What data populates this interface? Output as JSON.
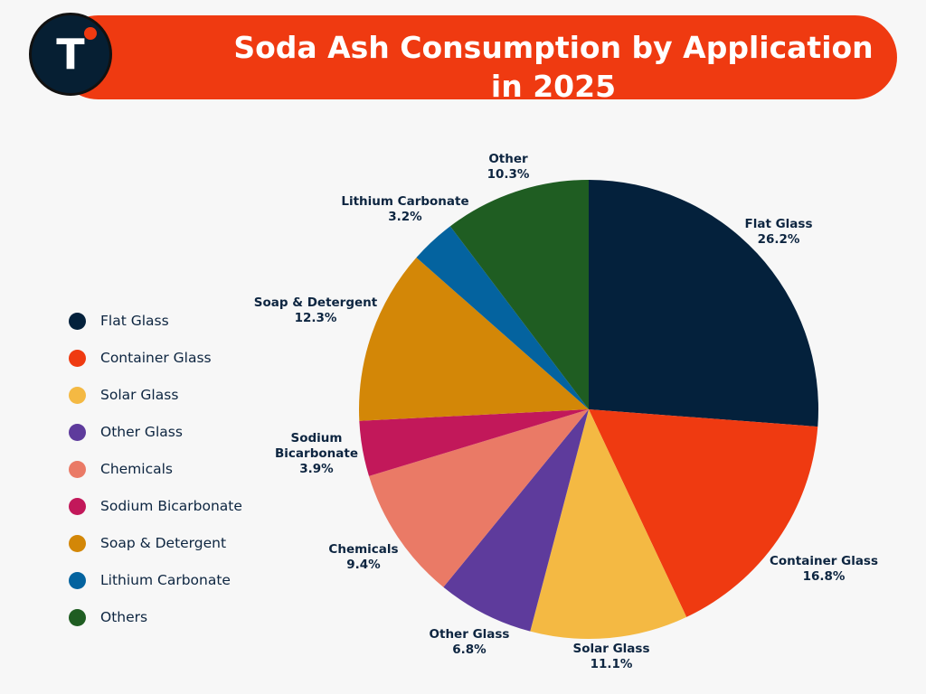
{
  "header": {
    "title_line1": "Soda Ash Consumption by Application",
    "title_line2": "in 2025",
    "logo_letter": "T"
  },
  "legend": {
    "items": [
      {
        "label": "Flat Glass",
        "color": "#04213c"
      },
      {
        "label": "Container Glass",
        "color": "#ef3a11"
      },
      {
        "label": "Solar Glass",
        "color": "#f4b943"
      },
      {
        "label": "Other Glass",
        "color": "#5e3b9c"
      },
      {
        "label": "Chemicals",
        "color": "#ea7a66"
      },
      {
        "label": "Sodium Bicarbonate",
        "color": "#c2185a"
      },
      {
        "label": "Soap & Detergent",
        "color": "#d38707"
      },
      {
        "label": "Lithium Carbonate",
        "color": "#04639f"
      },
      {
        "label": "Others",
        "color": "#1f5d22"
      }
    ]
  },
  "chart_data": {
    "type": "pie",
    "title": "Soda Ash Consumption by Application in 2025",
    "categories": [
      "Flat Glass",
      "Container Glass",
      "Solar Glass",
      "Other Glass",
      "Chemicals",
      "Sodium Bicarbonate",
      "Soap & Detergent",
      "Lithium Carbonate",
      "Other"
    ],
    "values": [
      26.2,
      16.8,
      11.1,
      6.8,
      9.4,
      3.9,
      12.3,
      3.2,
      10.3
    ],
    "value_labels": [
      "26.2%",
      "16.8%",
      "11.1%",
      "6.8%",
      "9.4%",
      "3.9%",
      "12.3%",
      "3.2%",
      "10.3%"
    ],
    "slice_labels": [
      [
        "Flat Glass",
        "26.2%"
      ],
      [
        "Container Glass",
        "16.8%"
      ],
      [
        "Solar Glass",
        "11.1%"
      ],
      [
        "Other Glass",
        "6.8%"
      ],
      [
        "Chemicals",
        "9.4%"
      ],
      [
        "Sodium",
        "Bicarbonate",
        "3.9%"
      ],
      [
        "Soap & Detergent",
        "12.3%"
      ],
      [
        "Lithium Carbonate",
        "3.2%"
      ],
      [
        "Other",
        "10.3%"
      ]
    ],
    "colors": [
      "#04213c",
      "#ef3a11",
      "#f4b943",
      "#5e3b9c",
      "#ea7a66",
      "#c2185a",
      "#d38707",
      "#04639f",
      "#1f5d22"
    ],
    "start": "12 o'clock",
    "direction": "clockwise",
    "legend_position": "left"
  }
}
